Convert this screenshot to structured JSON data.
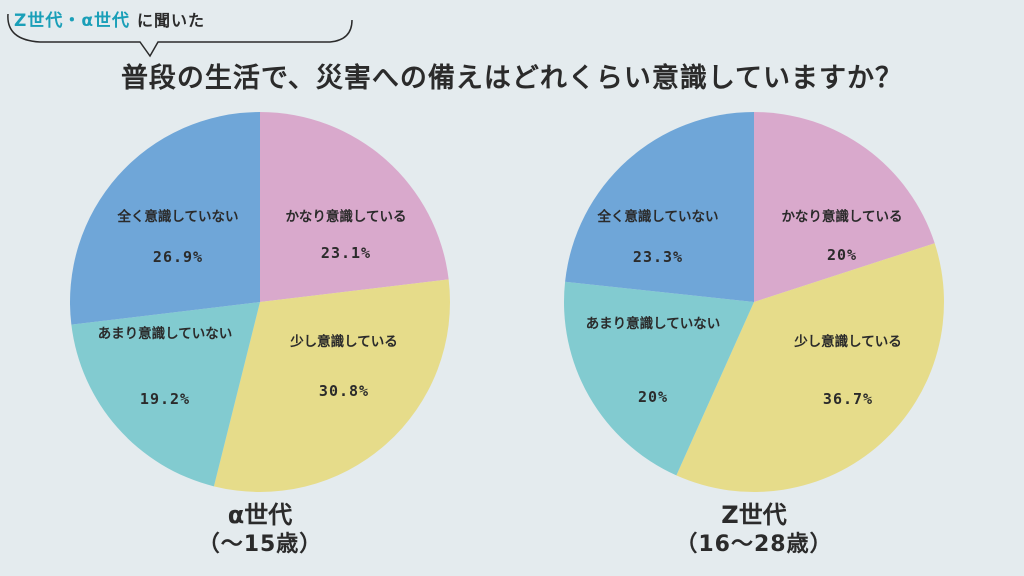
{
  "header": {
    "tag_accent": "Z世代・α世代",
    "tag_plain": "に聞いた"
  },
  "title": "普段の生活で、災害への備えはどれくらい意識していますか？",
  "colors": {
    "かなり意識している": "#d9a9cc",
    "少し意識している": "#e6dc8a",
    "あまり意識していない": "#82cbd0",
    "全く意識していない": "#6fa6d8"
  },
  "chart_data": [
    {
      "type": "pie",
      "name": "α世代",
      "subtitle": "（～15歳）",
      "slices": [
        {
          "label": "かなり意識している",
          "value": 23.1,
          "value_text": "23.1%"
        },
        {
          "label": "少し意識している",
          "value": 30.8,
          "value_text": "30.8%"
        },
        {
          "label": "あまり意識していない",
          "value": 19.2,
          "value_text": "19.2%"
        },
        {
          "label": "全く意識していない",
          "value": 26.9,
          "value_text": "26.9%"
        }
      ]
    },
    {
      "type": "pie",
      "name": "Z世代",
      "subtitle": "（16～28歳）",
      "slices": [
        {
          "label": "かなり意識している",
          "value": 20,
          "value_text": "20%"
        },
        {
          "label": "少し意識している",
          "value": 36.7,
          "value_text": "36.7%"
        },
        {
          "label": "あまり意識していない",
          "value": 20,
          "value_text": "20%"
        },
        {
          "label": "全く意識していない",
          "value": 23.3,
          "value_text": "23.3%"
        }
      ]
    }
  ]
}
